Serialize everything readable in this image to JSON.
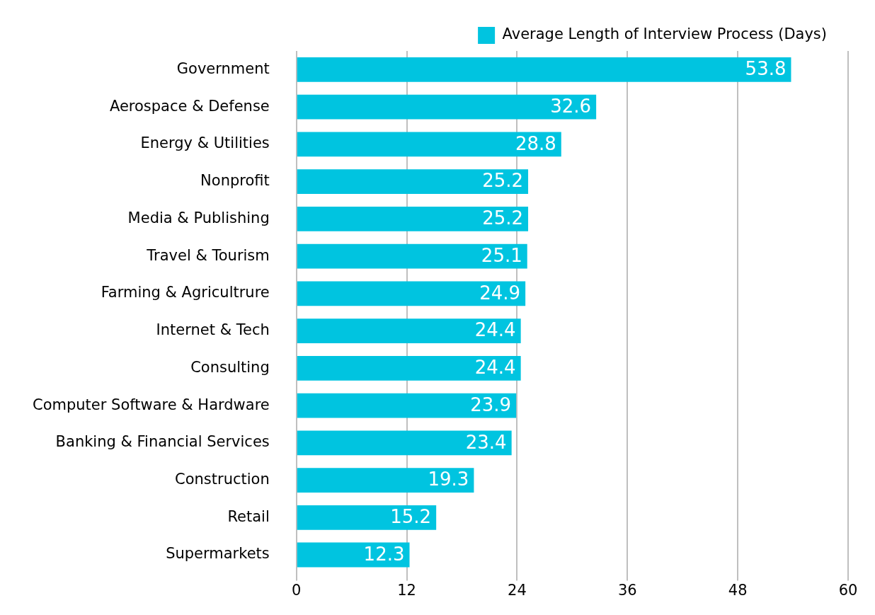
{
  "chart_data": {
    "type": "bar",
    "orientation": "horizontal",
    "categories": [
      "Government",
      "Aerospace & Defense",
      "Energy & Utilities",
      "Nonprofit",
      "Media & Publishing",
      "Travel & Tourism",
      "Farming & Agricultrure",
      "Internet & Tech",
      "Consulting",
      "Computer Software & Hardware",
      "Banking & Financial Services",
      "Construction",
      "Retail",
      "Supermarkets"
    ],
    "series": [
      {
        "name": "Average Length of Interview Process (Days)",
        "color": "#00c4e0",
        "values": [
          53.8,
          32.6,
          28.8,
          25.2,
          25.2,
          25.1,
          24.9,
          24.4,
          24.4,
          23.9,
          23.4,
          19.3,
          15.2,
          12.3
        ]
      }
    ],
    "xlim": [
      0,
      60
    ],
    "xticks": [
      0,
      12,
      24,
      36,
      48,
      60
    ],
    "grid": "x",
    "legend": "top right",
    "data_labels": true
  }
}
